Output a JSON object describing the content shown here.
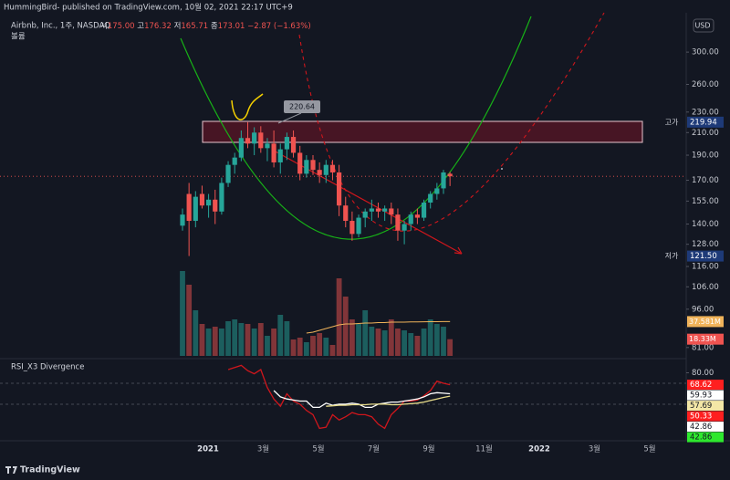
{
  "title": "HummingBird- published on TradingView.com, 10월 02, 2021 22:17 UTC+9",
  "footer": "TradingView",
  "chart_data": {
    "type": "candlestick",
    "symbol": "Airbnb, Inc., 1주, NASDAQ",
    "ohlc": [
      {
        "name": "시",
        "value_label": "175.00"
      },
      {
        "name": "고",
        "value_label": "176.32"
      },
      {
        "name": "저",
        "value_label": "165.71"
      },
      {
        "name": "종",
        "value_label": "173.01"
      }
    ],
    "change": "−2.87 (−1.63%)",
    "currency": "USD",
    "log_scale": true,
    "ylim": [
      79,
      350
    ],
    "yticks": [
      {
        "value": 300,
        "label": "300.00"
      },
      {
        "value": 260,
        "label": "260.00"
      },
      {
        "value": 230,
        "label": "230.00"
      },
      {
        "value": 210,
        "label": "210.00"
      },
      {
        "value": 190,
        "label": "190.00"
      },
      {
        "value": 170,
        "label": "170.00"
      },
      {
        "value": 155,
        "label": "155.00"
      },
      {
        "value": 140,
        "label": "140.00"
      },
      {
        "value": 128,
        "label": "128.00"
      },
      {
        "value": 116,
        "label": "116.00"
      },
      {
        "value": 106,
        "label": "106.00"
      },
      {
        "value": 96,
        "label": "96.00"
      },
      {
        "value": 81,
        "label": "81.00"
      }
    ],
    "up_color": "#26a69a",
    "down_color": "#ef5350",
    "candles": {
      "open": [
        139,
        160,
        142,
        160,
        152,
        156,
        148,
        168,
        182,
        188,
        205,
        200,
        210,
        196,
        200,
        184,
        195,
        206,
        192,
        175,
        186,
        178,
        174,
        182,
        176,
        152,
        142,
        134,
        144,
        148,
        150,
        148,
        150,
        146,
        136,
        140,
        146,
        144,
        154,
        160,
        164,
        175
      ],
      "high": [
        150,
        168,
        162,
        166,
        160,
        163,
        172,
        185,
        192,
        212,
        219.94,
        215,
        216,
        205,
        212,
        200,
        210,
        212,
        198,
        190,
        190,
        184,
        186,
        186,
        182,
        158,
        148,
        146,
        150,
        156,
        154,
        152,
        154,
        150,
        142,
        148,
        150,
        156,
        162,
        168,
        178,
        176.32
      ],
      "low": [
        136,
        121.5,
        138,
        150,
        144,
        140,
        146,
        165,
        175,
        185,
        196,
        190,
        192,
        185,
        180,
        175,
        186,
        188,
        170,
        172,
        174,
        168,
        168,
        170,
        145,
        138,
        130,
        132,
        138,
        142,
        144,
        142,
        140,
        130,
        128,
        136,
        140,
        142,
        150,
        156,
        160,
        165.71
      ],
      "close": [
        146,
        142,
        158,
        152,
        156,
        148,
        168,
        182,
        188,
        205,
        200,
        210,
        196,
        200,
        184,
        195,
        206,
        192,
        175,
        186,
        178,
        174,
        182,
        176,
        152,
        142,
        134,
        144,
        148,
        150,
        148,
        150,
        146,
        136,
        140,
        146,
        144,
        154,
        160,
        164,
        176,
        173.01
      ]
    },
    "price_badges": [
      {
        "name": "고가",
        "value": 219.94,
        "value_label": "219.94"
      },
      {
        "name": "저가",
        "value": 121.5,
        "value_label": "121.50"
      }
    ],
    "annotation": {
      "value": 220.64
    },
    "x_labels": [
      "2021",
      "3월",
      "5월",
      "7월",
      "9월",
      "11월",
      "2022",
      "3월",
      "5월"
    ],
    "volume": {
      "name": "볼륨",
      "ylim": [
        0,
        100
      ],
      "values": [
        93,
        78,
        50,
        35,
        30,
        32,
        30,
        38,
        40,
        36,
        35,
        30,
        36,
        22,
        30,
        45,
        38,
        18,
        20,
        15,
        22,
        25,
        20,
        12,
        85,
        65,
        40,
        35,
        50,
        32,
        30,
        28,
        40,
        30,
        28,
        25,
        22,
        30,
        40,
        35,
        32,
        18.33
      ],
      "ma": [
        null,
        null,
        null,
        null,
        null,
        null,
        null,
        null,
        null,
        null,
        null,
        null,
        null,
        null,
        null,
        null,
        null,
        null,
        null,
        25,
        26,
        28,
        30,
        32,
        34,
        35,
        35,
        35.5,
        36,
        36,
        36.5,
        36.5,
        37,
        37,
        37,
        37.2,
        37.3,
        37.4,
        37.5,
        37.5,
        37.6,
        37.581
      ],
      "ma_color": "#f0b35a",
      "ma_value_label": "37.581M",
      "last_value_label": "18.33M"
    },
    "rsi": {
      "name": "RSI_X3 Divergence",
      "ylim": [
        16,
        90
      ],
      "yticks": [
        {
          "value": 80,
          "label": "80.00"
        }
      ],
      "series": [
        {
          "color": "#d0161c",
          "values": [
            null,
            null,
            null,
            null,
            null,
            null,
            null,
            83,
            85,
            87,
            82,
            79,
            83,
            66,
            55,
            48,
            60,
            53,
            50,
            44,
            40,
            27,
            28,
            40,
            35,
            38,
            42,
            40,
            40,
            38,
            31,
            27,
            40,
            46,
            53,
            53,
            54,
            58,
            63,
            72,
            70,
            68.62
          ]
        },
        {
          "color": "#ffffff",
          "values": [
            null,
            null,
            null,
            null,
            null,
            null,
            null,
            null,
            null,
            null,
            null,
            null,
            null,
            null,
            63,
            57,
            55,
            54,
            53,
            53,
            47,
            47,
            51,
            49,
            50,
            50,
            51,
            50,
            47,
            47,
            50,
            51,
            52,
            52,
            53,
            54,
            55,
            57,
            60,
            61,
            60.5,
            59.93
          ]
        },
        {
          "color": "#e8dc8a",
          "values": [
            null,
            null,
            null,
            null,
            null,
            null,
            null,
            null,
            null,
            null,
            null,
            null,
            null,
            null,
            null,
            null,
            null,
            null,
            null,
            null,
            null,
            null,
            48,
            48.5,
            49,
            49,
            49.5,
            49.5,
            49.5,
            50,
            50,
            50,
            49.5,
            49.5,
            50,
            50.5,
            51,
            52,
            53.5,
            55,
            56.5,
            57.69
          ]
        }
      ],
      "badges": [
        {
          "value": 68.62,
          "color": "#ff1f1f"
        },
        {
          "value": 59.93,
          "color": "#ffffff"
        },
        {
          "value": 57.69,
          "color": "#f3e6a6"
        },
        {
          "value": 50.33,
          "color": "#ff1f1f"
        },
        {
          "value": 42.86,
          "color": "#ffffff"
        },
        {
          "value": 42.86,
          "color": "#2ee82e"
        }
      ]
    }
  }
}
